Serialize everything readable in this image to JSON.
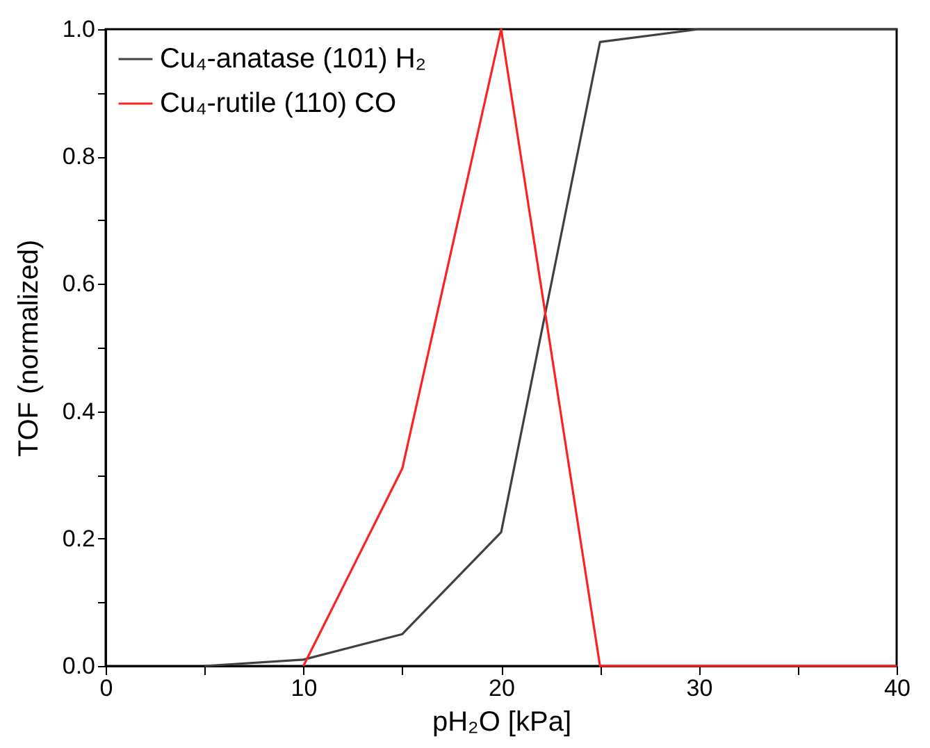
{
  "chart_data": {
    "type": "line",
    "xlabel": "pH₂O [kPa]",
    "ylabel": "TOF (normalized)",
    "x": [
      5,
      10,
      15,
      20,
      25,
      30,
      35,
      40
    ],
    "series": [
      {
        "name": "Cu₄-anatase (101) H₂",
        "color": "#404040",
        "values": [
          0,
          0.01,
          0.05,
          0.21,
          0.98,
          1.0,
          1.0,
          1.0
        ]
      },
      {
        "name": "Cu₄-rutile (110) CO",
        "color": "#ff2020",
        "x": [
          10,
          15,
          20,
          25,
          30,
          35,
          40
        ],
        "values": [
          0,
          0.31,
          1.0,
          0,
          0,
          0,
          0
        ]
      }
    ],
    "xlim": [
      0,
      40
    ],
    "ylim": [
      0,
      1
    ],
    "xticks": [
      0,
      {
        "value": 5,
        "label": null
      },
      10,
      {
        "value": 15,
        "label": null
      },
      20,
      {
        "value": 25,
        "label": null
      },
      30,
      {
        "value": 35,
        "label": null
      },
      40
    ],
    "yticks": [
      {
        "value": 0,
        "label": "0.0"
      },
      {
        "value": 0.1,
        "label": null
      },
      {
        "value": 0.2,
        "label": "0.2"
      },
      {
        "value": 0.3,
        "label": null
      },
      {
        "value": 0.4,
        "label": "0.4"
      },
      {
        "value": 0.5,
        "label": null
      },
      {
        "value": 0.6,
        "label": "0.6"
      },
      {
        "value": 0.7,
        "label": null
      },
      {
        "value": 0.8,
        "label": "0.8"
      },
      {
        "value": 0.9,
        "label": null
      },
      {
        "value": 1.0,
        "label": "1.0"
      }
    ],
    "grid": false,
    "legend": "top left",
    "line_style": "solid",
    "marker": "none"
  }
}
